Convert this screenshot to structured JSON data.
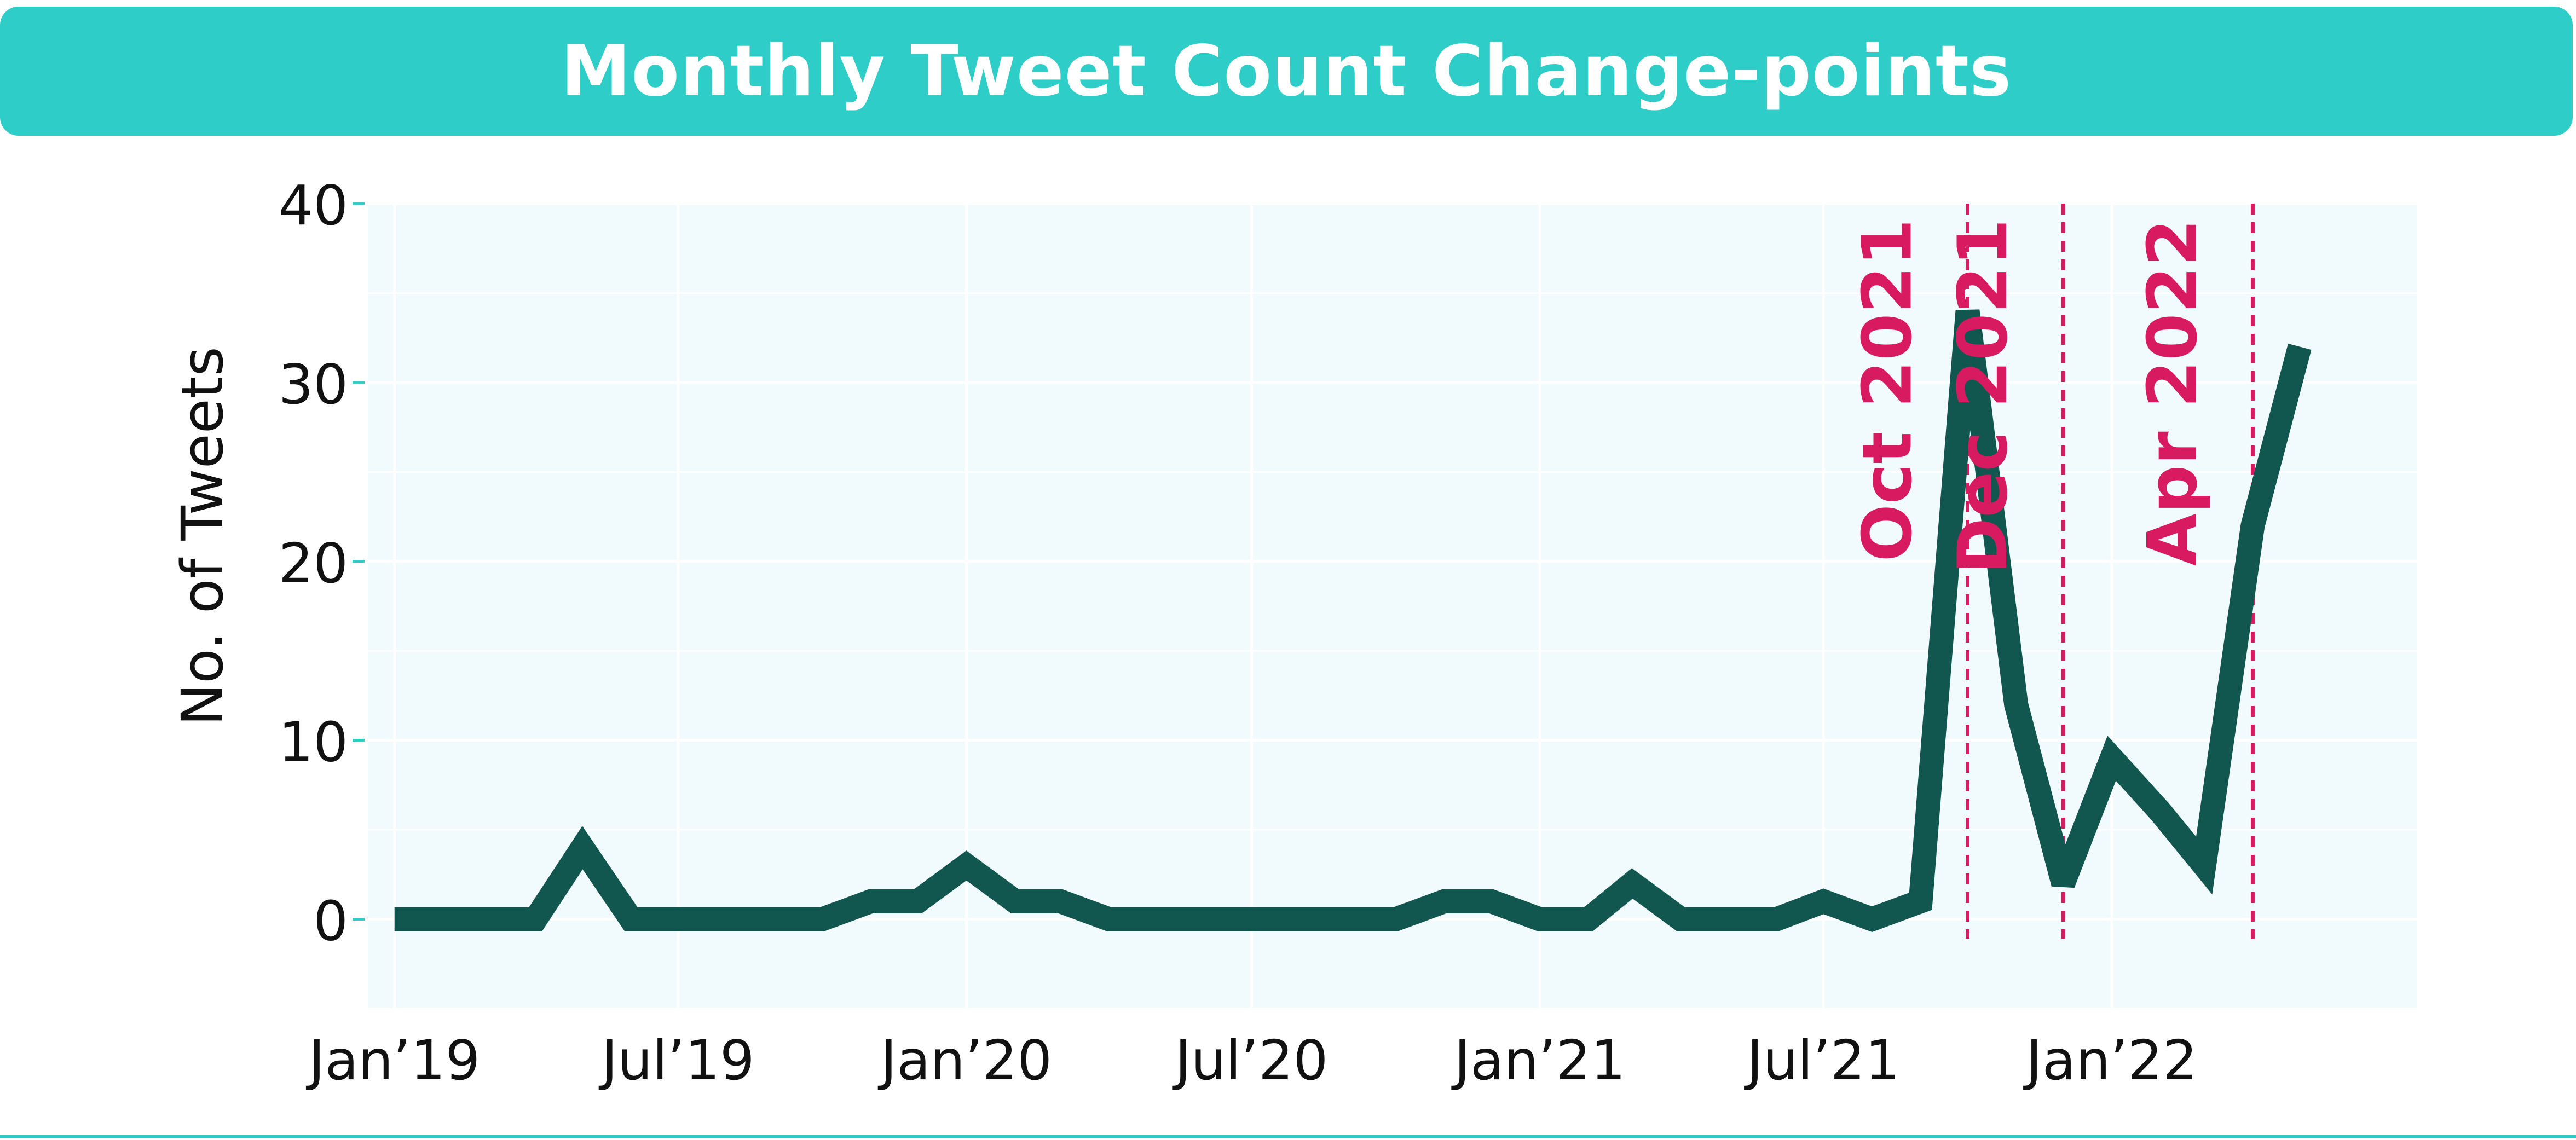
{
  "colors": {
    "banner": "#2ecdc7",
    "plot_bg": "#f1fafc",
    "grid": "#ffffff",
    "line": "#12574f",
    "changepoint": "#d81b60",
    "tick_mark": "#2ecdc7",
    "text": "#111111"
  },
  "chart_data": {
    "type": "line",
    "title": "Monthly Tweet Count Change-points",
    "xlabel": "",
    "ylabel": "No. of Tweets",
    "ylim": [
      -5,
      40
    ],
    "yticks": [
      0,
      10,
      20,
      30,
      40
    ],
    "xlim": [
      "2018-12-15",
      "2022-07-15"
    ],
    "xticks": [
      {
        "date": "2019-01-01",
        "label": "Jan’19"
      },
      {
        "date": "2019-07-01",
        "label": "Jul’19"
      },
      {
        "date": "2020-01-01",
        "label": "Jan’20"
      },
      {
        "date": "2020-07-01",
        "label": "Jul’20"
      },
      {
        "date": "2021-01-01",
        "label": "Jan’21"
      },
      {
        "date": "2021-07-01",
        "label": "Jul’21"
      },
      {
        "date": "2022-01-01",
        "label": "Jan’22"
      }
    ],
    "grid": true,
    "series": [
      {
        "x": [
          "2019-01-01",
          "2019-02-01",
          "2019-03-01",
          "2019-04-01",
          "2019-05-01",
          "2019-06-01",
          "2019-07-01",
          "2019-08-01",
          "2019-09-01",
          "2019-10-01",
          "2019-11-01",
          "2019-12-01",
          "2020-01-01",
          "2020-02-01",
          "2020-03-01",
          "2020-04-01",
          "2020-05-01",
          "2020-06-01",
          "2020-07-01",
          "2020-08-01",
          "2020-09-01",
          "2020-10-01",
          "2020-11-01",
          "2020-12-01",
          "2021-01-01",
          "2021-02-01",
          "2021-03-01",
          "2021-04-01",
          "2021-05-01",
          "2021-06-01",
          "2021-07-01",
          "2021-08-01",
          "2021-09-01",
          "2021-10-01",
          "2021-11-01",
          "2021-12-01",
          "2022-01-01",
          "2022-02-01",
          "2022-03-01",
          "2022-04-01",
          "2022-05-01"
        ],
        "values": [
          0,
          0,
          0,
          0,
          4,
          0,
          0,
          0,
          0,
          0,
          1,
          1,
          3,
          1,
          1,
          0,
          0,
          0,
          0,
          0,
          0,
          0,
          1,
          1,
          0,
          0,
          2,
          0,
          0,
          0,
          1,
          0,
          1,
          34,
          12,
          2,
          9,
          6,
          3,
          22,
          32
        ]
      }
    ],
    "changepoints": [
      {
        "date": "2021-10-01",
        "label": "Oct 2021"
      },
      {
        "date": "2021-12-01",
        "label": "Dec 2021"
      },
      {
        "date": "2022-04-01",
        "label": "Apr 2022"
      }
    ]
  }
}
